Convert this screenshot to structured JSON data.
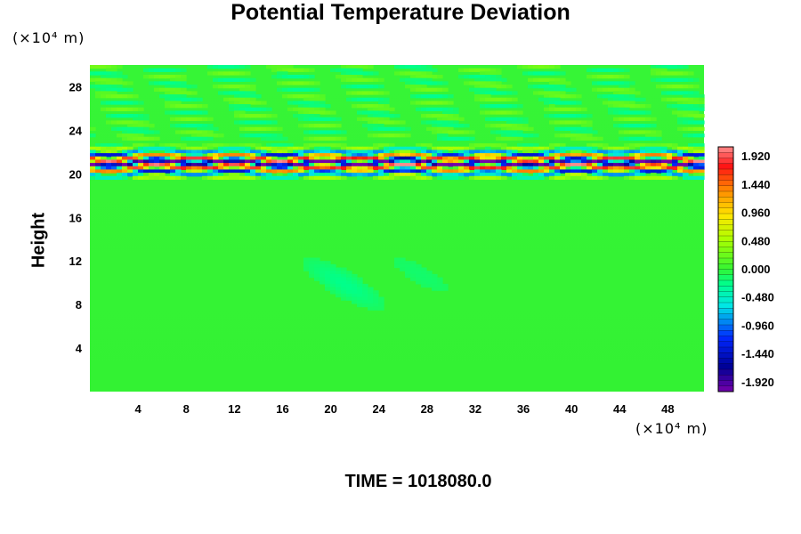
{
  "chart_data": {
    "type": "heatmap",
    "title": "Potential Temperature Deviation",
    "ylabel": "Height",
    "xlabel": "",
    "x_unit": "(×10⁴ m)",
    "y_unit": "(×10⁴ m)",
    "xlim": [
      0,
      51
    ],
    "ylim": [
      0,
      30
    ],
    "x_ticks": [
      "4",
      "8",
      "12",
      "16",
      "20",
      "24",
      "28",
      "32",
      "36",
      "40",
      "44",
      "48"
    ],
    "y_ticks": [
      "4",
      "8",
      "12",
      "16",
      "20",
      "24",
      "28"
    ],
    "colorbar": {
      "min": -2.08,
      "max": 2.08,
      "labels": [
        "1.920",
        "1.440",
        "0.960",
        "0.480",
        "0.000",
        "-0.480",
        "-0.960",
        "-1.440",
        "-1.920"
      ]
    },
    "background_value": 0.0,
    "features": [
      {
        "description_value": "alternating positive/negative deviation band",
        "y_range": [
          19.5,
          23
        ],
        "amplitude": 2.0
      },
      {
        "description_value": "weak wave pattern",
        "y_range": [
          23,
          30
        ],
        "amplitude": 0.35
      }
    ],
    "grid": false,
    "legend": "colorbar-right"
  },
  "footer": {
    "time_label": "TIME = 1018080.0"
  },
  "colors": {
    "background_field": "#33ff33",
    "colorbar_top": "#ff8888",
    "colorbar_bottom": "#7700aa"
  }
}
